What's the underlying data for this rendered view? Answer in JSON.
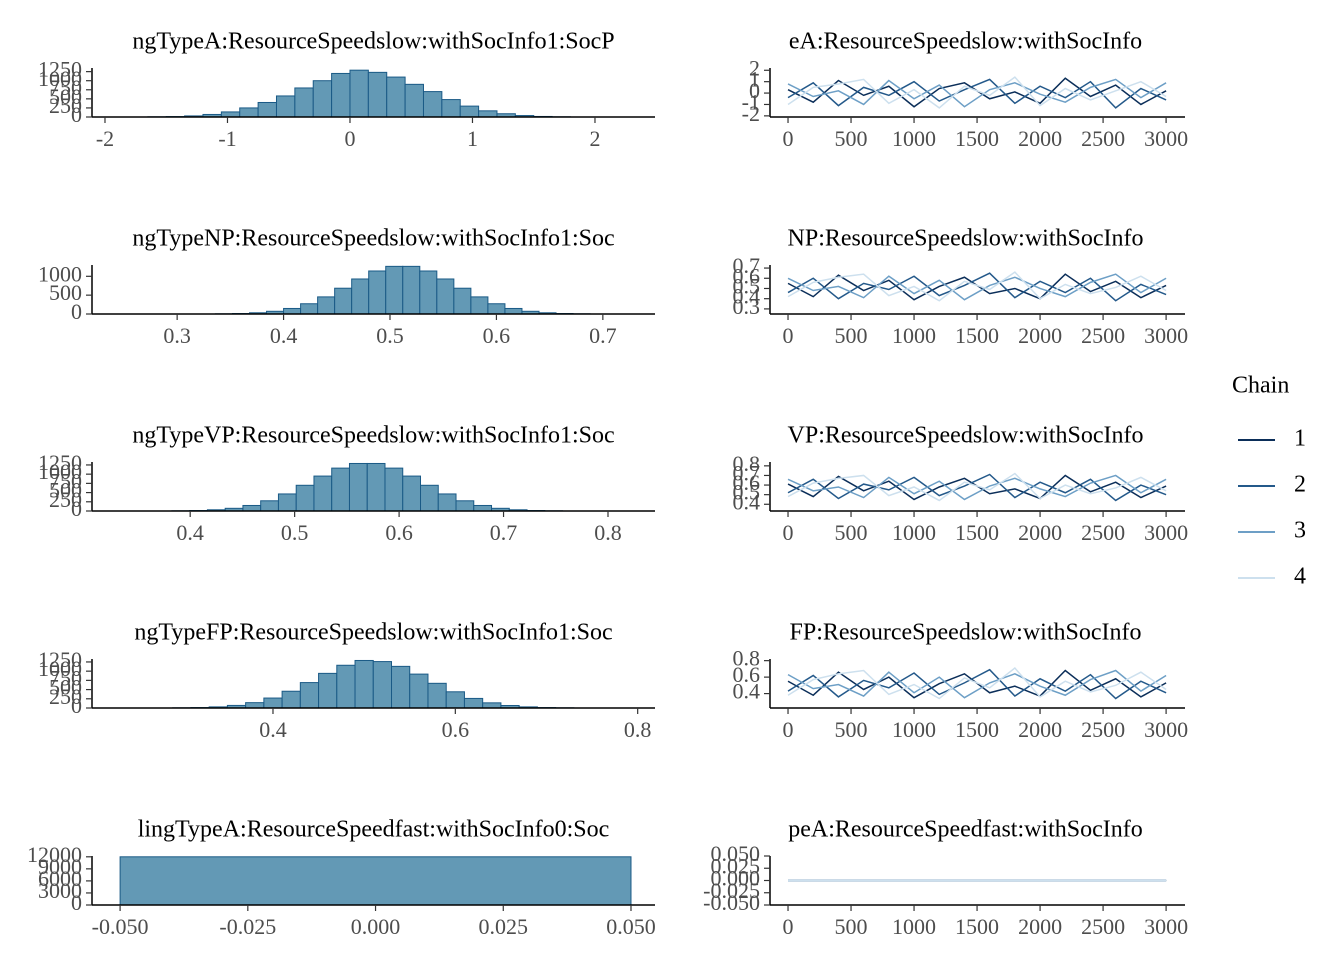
{
  "chart_data": [
    {
      "type": "histogram",
      "title": "ngTypeA:ResourceSpeedslow:withSocInfo1:SocP",
      "bins": [
        -1.65,
        -1.5,
        -1.35,
        -1.2,
        -1.05,
        -0.9,
        -0.75,
        -0.6,
        -0.45,
        -0.3,
        -0.15,
        0,
        0.15,
        0.3,
        0.45,
        0.6,
        0.75,
        0.9,
        1.05,
        1.2,
        1.35,
        1.5,
        1.65,
        1.8
      ],
      "counts": [
        5,
        12,
        30,
        70,
        140,
        250,
        400,
        580,
        800,
        1000,
        1200,
        1290,
        1230,
        1100,
        900,
        700,
        480,
        300,
        170,
        90,
        40,
        15,
        5
      ],
      "color": "#6399b5",
      "edge_color": "#1a5a86",
      "xlim": [
        -2.106,
        2.49
      ],
      "ylim": [
        0,
        1350
      ],
      "xticks": [
        -2,
        -1,
        0,
        1,
        2
      ],
      "yticks": [
        0,
        250,
        500,
        750,
        1000,
        1250
      ]
    },
    {
      "type": "line",
      "title": "eA:ResourceSpeedslow:withSocInfo",
      "x": [
        0,
        200,
        400,
        600,
        800,
        1000,
        1200,
        1400,
        1600,
        1800,
        2000,
        2200,
        2400,
        2600,
        2800,
        3000
      ],
      "series": [
        {
          "name": "1",
          "color": "#0b2e59",
          "values": [
            0.3,
            -0.8,
            1.1,
            -0.2,
            0.6,
            -1.2,
            0.4,
            0.9,
            -0.5,
            0.1,
            -0.9,
            1.3,
            -0.3,
            0.7,
            -1.0,
            0.2
          ]
        },
        {
          "name": "2",
          "color": "#24598a",
          "values": [
            -0.4,
            0.9,
            -1.1,
            0.5,
            -0.2,
            1.0,
            -0.7,
            0.3,
            1.2,
            -0.9,
            0.6,
            -0.4,
            1.0,
            -1.3,
            0.4,
            -0.6
          ]
        },
        {
          "name": "3",
          "color": "#6d9fc6",
          "values": [
            0.8,
            -0.3,
            0.2,
            -1.0,
            1.1,
            -0.5,
            0.7,
            -1.2,
            0.3,
            0.9,
            -0.1,
            -0.8,
            0.5,
            1.2,
            -0.4,
            0.9
          ]
        },
        {
          "name": "4",
          "color": "#cde0ee",
          "values": [
            -1.0,
            0.5,
            0.8,
            1.2,
            -0.9,
            0.3,
            -1.3,
            0.6,
            -0.2,
            1.4,
            -1.1,
            0.4,
            -0.6,
            0.2,
            1.0,
            -0.3
          ]
        }
      ],
      "xlim": [
        -143,
        3150
      ],
      "ylim": [
        -2.1,
        2.2
      ],
      "xticks": [
        0,
        500,
        1000,
        1500,
        2000,
        2500,
        3000
      ],
      "yticks": [
        -2,
        -1,
        0,
        1,
        2
      ],
      "legend": {
        "title": "Chain",
        "position": "right"
      }
    },
    {
      "type": "histogram",
      "title": "ngTypeNP:ResourceSpeedslow:withSocInfo1:Soc",
      "bins": [
        0.336,
        0.352,
        0.368,
        0.384,
        0.4,
        0.416,
        0.432,
        0.448,
        0.464,
        0.48,
        0.496,
        0.512,
        0.528,
        0.544,
        0.56,
        0.576,
        0.592,
        0.608,
        0.624,
        0.64,
        0.656,
        0.672,
        0.688
      ],
      "counts": [
        5,
        13,
        32,
        72,
        147,
        272,
        454,
        684,
        929,
        1141,
        1264,
        1264,
        1141,
        929,
        684,
        454,
        272,
        147,
        72,
        32,
        13,
        5
      ],
      "color": "#6399b5",
      "edge_color": "#1a5a86",
      "xlim": [
        0.22,
        0.749
      ],
      "ylim": [
        0,
        1300
      ],
      "xticks": [
        0.3,
        0.4,
        0.5,
        0.6,
        0.7
      ],
      "yticks": [
        0,
        500,
        1000
      ]
    },
    {
      "type": "line",
      "title": "NP:ResourceSpeedslow:withSocInfo",
      "x": [
        0,
        200,
        400,
        600,
        800,
        1000,
        1200,
        1400,
        1600,
        1800,
        2000,
        2200,
        2400,
        2600,
        2800,
        3000
      ],
      "series": [
        {
          "name": "1",
          "color": "#0b2e59",
          "values": [
            0.55,
            0.42,
            0.63,
            0.48,
            0.58,
            0.39,
            0.52,
            0.61,
            0.45,
            0.5,
            0.4,
            0.64,
            0.47,
            0.57,
            0.41,
            0.53
          ]
        },
        {
          "name": "2",
          "color": "#24598a",
          "values": [
            0.46,
            0.6,
            0.4,
            0.55,
            0.49,
            0.62,
            0.43,
            0.53,
            0.65,
            0.41,
            0.57,
            0.46,
            0.6,
            0.38,
            0.54,
            0.44
          ]
        },
        {
          "name": "3",
          "color": "#6d9fc6",
          "values": [
            0.6,
            0.48,
            0.52,
            0.41,
            0.62,
            0.45,
            0.58,
            0.39,
            0.53,
            0.61,
            0.5,
            0.42,
            0.56,
            0.64,
            0.46,
            0.6
          ]
        },
        {
          "name": "4",
          "color": "#cde0ee",
          "values": [
            0.42,
            0.56,
            0.61,
            0.64,
            0.43,
            0.52,
            0.38,
            0.57,
            0.49,
            0.66,
            0.4,
            0.54,
            0.45,
            0.51,
            0.62,
            0.48
          ]
        }
      ],
      "xlim": [
        -143,
        3150
      ],
      "ylim": [
        0.25,
        0.73
      ],
      "xticks": [
        0,
        500,
        1000,
        1500,
        2000,
        2500,
        3000
      ],
      "yticks": [
        0.3,
        0.4,
        0.5,
        0.6,
        0.7
      ]
    },
    {
      "type": "histogram",
      "title": "ngTypeVP:ResourceSpeedslow:withSocInfo1:Soc",
      "bins": [
        0.3825,
        0.3995,
        0.4165,
        0.4335,
        0.4505,
        0.4675,
        0.4845,
        0.5015,
        0.5185,
        0.5355,
        0.5525,
        0.5695,
        0.5865,
        0.6035,
        0.6205,
        0.6375,
        0.6545,
        0.6715,
        0.6885,
        0.7055,
        0.7225,
        0.7395,
        0.7565
      ],
      "counts": [
        5,
        13,
        33,
        73,
        150,
        277,
        463,
        698,
        948,
        1164,
        1290,
        1290,
        1164,
        948,
        698,
        463,
        277,
        150,
        73,
        33,
        13,
        5
      ],
      "color": "#6399b5",
      "edge_color": "#1a5a86",
      "xlim": [
        0.306,
        0.845
      ],
      "ylim": [
        0,
        1330
      ],
      "xticks": [
        0.4,
        0.5,
        0.6,
        0.7,
        0.8
      ],
      "yticks": [
        0,
        250,
        500,
        750,
        1000,
        1250
      ]
    },
    {
      "type": "line",
      "title": "VP:ResourceSpeedslow:withSocInfo",
      "x": [
        0,
        200,
        400,
        600,
        800,
        1000,
        1200,
        1400,
        1600,
        1800,
        2000,
        2200,
        2400,
        2600,
        2800,
        3000
      ],
      "series": [
        {
          "name": "1",
          "color": "#0b2e59",
          "values": [
            0.61,
            0.48,
            0.69,
            0.54,
            0.64,
            0.45,
            0.58,
            0.67,
            0.51,
            0.56,
            0.46,
            0.7,
            0.53,
            0.63,
            0.47,
            0.59
          ]
        },
        {
          "name": "2",
          "color": "#24598a",
          "values": [
            0.52,
            0.66,
            0.46,
            0.61,
            0.55,
            0.68,
            0.49,
            0.59,
            0.71,
            0.47,
            0.63,
            0.52,
            0.66,
            0.44,
            0.6,
            0.5
          ]
        },
        {
          "name": "3",
          "color": "#6d9fc6",
          "values": [
            0.66,
            0.54,
            0.58,
            0.47,
            0.68,
            0.51,
            0.64,
            0.45,
            0.59,
            0.67,
            0.56,
            0.48,
            0.62,
            0.7,
            0.52,
            0.66
          ]
        },
        {
          "name": "4",
          "color": "#cde0ee",
          "values": [
            0.48,
            0.62,
            0.67,
            0.7,
            0.49,
            0.58,
            0.44,
            0.63,
            0.55,
            0.72,
            0.46,
            0.6,
            0.51,
            0.57,
            0.68,
            0.54
          ]
        }
      ],
      "xlim": [
        -143,
        3150
      ],
      "ylim": [
        0.33,
        0.84
      ],
      "xticks": [
        0,
        500,
        1000,
        1500,
        2000,
        2500,
        3000
      ],
      "yticks": [
        0.4,
        0.5,
        0.6,
        0.7,
        0.8
      ]
    },
    {
      "type": "histogram",
      "title": "ngTypeFP:ResourceSpeedslow:withSocInfo1:Soc",
      "bins": [
        0.29,
        0.31,
        0.33,
        0.35,
        0.37,
        0.39,
        0.41,
        0.43,
        0.45,
        0.47,
        0.49,
        0.51,
        0.53,
        0.55,
        0.57,
        0.59,
        0.61,
        0.63,
        0.65,
        0.67,
        0.69,
        0.71,
        0.73
      ],
      "counts": [
        5,
        12,
        30,
        70,
        145,
        270,
        455,
        690,
        940,
        1160,
        1290,
        1260,
        1130,
        920,
        670,
        440,
        260,
        140,
        68,
        30,
        12,
        5
      ],
      "color": "#6399b5",
      "edge_color": "#1a5a86",
      "xlim": [
        0.2015,
        0.819
      ],
      "ylim": [
        0,
        1330
      ],
      "xticks": [
        0.4,
        0.6,
        0.8
      ],
      "yticks": [
        0,
        250,
        500,
        750,
        1000,
        1250
      ]
    },
    {
      "type": "line",
      "title": "FP:ResourceSpeedslow:withSocInfo",
      "x": [
        0,
        200,
        400,
        600,
        800,
        1000,
        1200,
        1400,
        1600,
        1800,
        2000,
        2200,
        2400,
        2600,
        2800,
        3000
      ],
      "series": [
        {
          "name": "1",
          "color": "#0b2e59",
          "values": [
            0.55,
            0.38,
            0.66,
            0.45,
            0.6,
            0.35,
            0.52,
            0.64,
            0.41,
            0.49,
            0.37,
            0.68,
            0.44,
            0.58,
            0.36,
            0.53
          ]
        },
        {
          "name": "2",
          "color": "#24598a",
          "values": [
            0.43,
            0.62,
            0.36,
            0.56,
            0.47,
            0.65,
            0.39,
            0.53,
            0.69,
            0.37,
            0.58,
            0.43,
            0.63,
            0.34,
            0.55,
            0.41
          ]
        },
        {
          "name": "3",
          "color": "#6d9fc6",
          "values": [
            0.63,
            0.46,
            0.51,
            0.37,
            0.66,
            0.41,
            0.6,
            0.35,
            0.53,
            0.64,
            0.49,
            0.38,
            0.57,
            0.68,
            0.43,
            0.62
          ]
        },
        {
          "name": "4",
          "color": "#cde0ee",
          "values": [
            0.38,
            0.57,
            0.64,
            0.68,
            0.39,
            0.51,
            0.34,
            0.59,
            0.47,
            0.71,
            0.36,
            0.55,
            0.42,
            0.5,
            0.66,
            0.45
          ]
        }
      ],
      "xlim": [
        -143,
        3150
      ],
      "ylim": [
        0.225,
        0.82
      ],
      "xticks": [
        0,
        500,
        1000,
        1500,
        2000,
        2500,
        3000
      ],
      "yticks": [
        0.4,
        0.6,
        0.8
      ]
    },
    {
      "type": "histogram",
      "title": "lingTypeA:ResourceSpeedfast:withSocInfo0:Soc",
      "bins": [
        -0.05,
        0.05
      ],
      "counts": [
        12000
      ],
      "color": "#6399b5",
      "edge_color": "#1a5a86",
      "xlim": [
        -0.0555,
        0.0547
      ],
      "ylim": [
        0,
        12200
      ],
      "xticks": [
        {
          "value": -0.05,
          "label": "-0.050"
        },
        {
          "value": -0.025,
          "label": "-0.025"
        },
        {
          "value": 0,
          "label": "0.000"
        },
        {
          "value": 0.025,
          "label": "0.025"
        },
        {
          "value": 0.05,
          "label": "0.050"
        }
      ],
      "yticks": [
        0,
        3000,
        6000,
        9000,
        12000
      ]
    },
    {
      "type": "line",
      "title": "peA:ResourceSpeedfast:withSocInfo",
      "x": [
        0,
        200,
        400,
        600,
        800,
        1000,
        1200,
        1400,
        1600,
        1800,
        2000,
        2200,
        2400,
        2600,
        2800,
        3000
      ],
      "series": [
        {
          "name": "1",
          "color": "#0b2e59",
          "values": [
            0,
            0,
            0,
            0,
            0,
            0,
            0,
            0,
            0,
            0,
            0,
            0,
            0,
            0,
            0,
            0
          ]
        },
        {
          "name": "2",
          "color": "#24598a",
          "values": [
            0,
            0,
            0,
            0,
            0,
            0,
            0,
            0,
            0,
            0,
            0,
            0,
            0,
            0,
            0,
            0
          ]
        },
        {
          "name": "3",
          "color": "#6d9fc6",
          "values": [
            0,
            0,
            0,
            0,
            0,
            0,
            0,
            0,
            0,
            0,
            0,
            0,
            0,
            0,
            0,
            0
          ]
        },
        {
          "name": "4",
          "color": "#cde0ee",
          "values": [
            0,
            0,
            0,
            0,
            0,
            0,
            0,
            0,
            0,
            0,
            0,
            0,
            0,
            0,
            0,
            0
          ]
        }
      ],
      "xlim": [
        -143,
        3150
      ],
      "ylim": [
        -0.05,
        0.05
      ],
      "xticks": [
        0,
        500,
        1000,
        1500,
        2000,
        2500,
        3000
      ],
      "yticks": [
        {
          "value": -0.05,
          "label": "-0.050"
        },
        {
          "value": -0.025,
          "label": "-0.025"
        },
        {
          "value": 0,
          "label": "0.000"
        },
        {
          "value": 0.025,
          "label": "0.025"
        },
        {
          "value": 0.05,
          "label": "0.050"
        }
      ]
    }
  ]
}
